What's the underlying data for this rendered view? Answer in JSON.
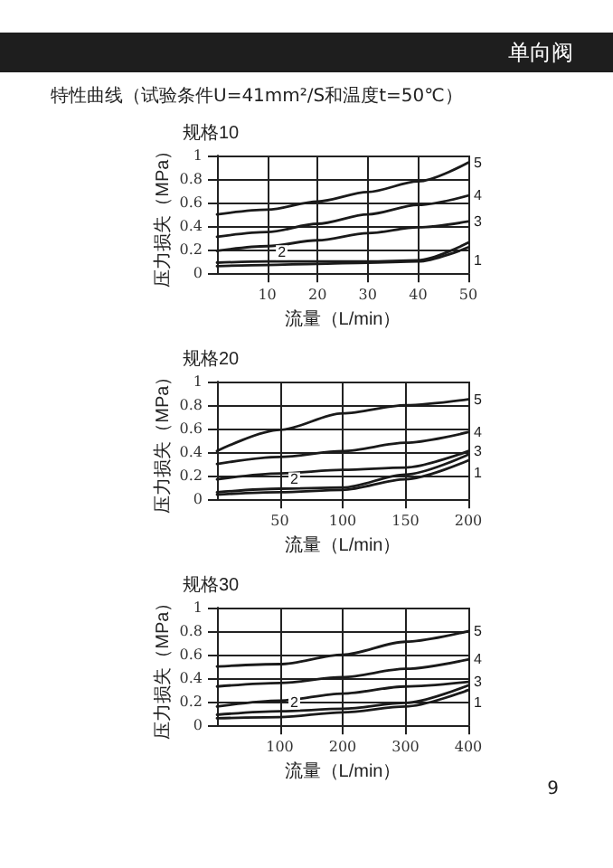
{
  "chart_data": [
    {
      "type": "line",
      "title": "规格10",
      "xlabel": "流量（L/min）",
      "ylabel": "压力损失（MPa）",
      "annotations": [
        "单向阀",
        "特性曲线（试验条件U=41mm²/S和温度t=50℃）"
      ],
      "x": [
        0,
        10,
        20,
        30,
        40,
        50
      ],
      "xlim": [
        0,
        50
      ],
      "xticks": [
        10,
        20,
        30,
        40,
        50
      ],
      "ylim": [
        0,
        1.0
      ],
      "yticks": [
        0,
        0.2,
        0.4,
        0.6,
        0.8,
        1.0
      ],
      "grid": true,
      "legend": false,
      "marker": "none",
      "line_style": "solid",
      "series": [
        {
          "name": "5",
          "color": "#1a1a1a",
          "values": [
            0.5,
            0.54,
            0.61,
            0.69,
            0.78,
            0.94
          ]
        },
        {
          "name": "4",
          "color": "#1a1a1a",
          "values": [
            0.31,
            0.35,
            0.42,
            0.5,
            0.58,
            0.66
          ]
        },
        {
          "name": "3",
          "color": "#1a1a1a",
          "values": [
            0.19,
            0.23,
            0.28,
            0.34,
            0.39,
            0.44
          ]
        },
        {
          "name": "2",
          "color": "#1a1a1a",
          "values": [
            0.09,
            0.1,
            0.1,
            0.1,
            0.11,
            0.26
          ]
        },
        {
          "name": "1",
          "color": "#1a1a1a",
          "values": [
            0.06,
            0.07,
            0.08,
            0.09,
            0.1,
            0.22
          ]
        }
      ]
    },
    {
      "type": "line",
      "title": "规格20",
      "xlabel": "流量（L/min）",
      "ylabel": "压力损失（MPa）",
      "x": [
        0,
        50,
        100,
        150,
        200
      ],
      "xlim": [
        0,
        200
      ],
      "xticks": [
        50,
        100,
        150,
        200
      ],
      "ylim": [
        0,
        1.0
      ],
      "yticks": [
        0,
        0.2,
        0.4,
        0.6,
        0.8,
        1.0
      ],
      "grid": true,
      "legend": false,
      "marker": "none",
      "line_style": "solid",
      "series": [
        {
          "name": "5",
          "color": "#1a1a1a",
          "values": [
            0.41,
            0.59,
            0.73,
            0.8,
            0.85
          ]
        },
        {
          "name": "4",
          "color": "#1a1a1a",
          "values": [
            0.3,
            0.36,
            0.41,
            0.48,
            0.57
          ]
        },
        {
          "name": "3",
          "color": "#1a1a1a",
          "values": [
            0.17,
            0.22,
            0.25,
            0.27,
            0.41
          ]
        },
        {
          "name": "2",
          "color": "#1a1a1a",
          "values": [
            0.06,
            0.09,
            0.1,
            0.21,
            0.38
          ]
        },
        {
          "name": "1",
          "color": "#1a1a1a",
          "values": [
            0.04,
            0.06,
            0.08,
            0.17,
            0.33
          ]
        }
      ]
    },
    {
      "type": "line",
      "title": "规格30",
      "xlabel": "流量（L/min）",
      "ylabel": "压力损失（MPa）",
      "annotations": [
        "9"
      ],
      "x": [
        0,
        100,
        200,
        300,
        400
      ],
      "xlim": [
        0,
        400
      ],
      "xticks": [
        100,
        200,
        300,
        400
      ],
      "ylim": [
        0,
        1.0
      ],
      "yticks": [
        0,
        0.2,
        0.4,
        0.6,
        0.8,
        1.0
      ],
      "grid": true,
      "legend": false,
      "marker": "none",
      "line_style": "solid",
      "series": [
        {
          "name": "5",
          "color": "#1a1a1a",
          "values": [
            0.5,
            0.52,
            0.6,
            0.71,
            0.8
          ]
        },
        {
          "name": "4",
          "color": "#1a1a1a",
          "values": [
            0.33,
            0.36,
            0.41,
            0.48,
            0.56
          ]
        },
        {
          "name": "3",
          "color": "#1a1a1a",
          "values": [
            0.16,
            0.21,
            0.27,
            0.33,
            0.37
          ]
        },
        {
          "name": "2",
          "color": "#1a1a1a",
          "values": [
            0.09,
            0.12,
            0.14,
            0.19,
            0.34
          ]
        },
        {
          "name": "1",
          "color": "#1a1a1a",
          "values": [
            0.06,
            0.07,
            0.11,
            0.16,
            0.3
          ]
        }
      ]
    }
  ]
}
